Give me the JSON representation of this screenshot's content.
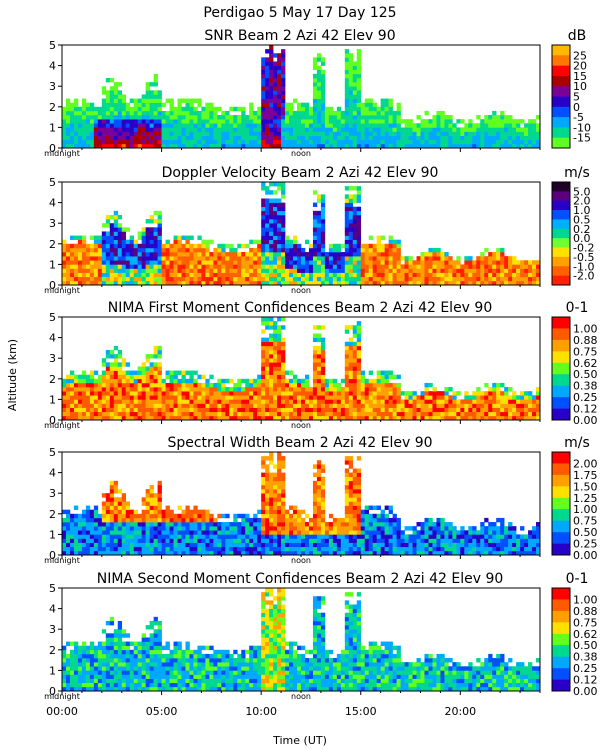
{
  "figure": {
    "title": "Perdigao    5 May 17 Day 125",
    "ylabel": "Altitude (km)",
    "xlabel": "Time (UT)",
    "x_ticks": [
      "00:00",
      "05:00",
      "10:00",
      "15:00",
      "20:00"
    ],
    "y_ticks": [
      "0",
      "1",
      "2",
      "3",
      "4",
      "5"
    ],
    "midnight_label": "midnight",
    "noon_label": "noon"
  },
  "chart_data": [
    {
      "type": "heatmap",
      "title": "SNR Beam 2 Azi  42 Elev 90",
      "colorbar_unit": "dB",
      "colorbar_labels": [
        "25",
        "20",
        "15",
        "10",
        "5",
        "0",
        "-5",
        "-10",
        "-15"
      ],
      "colorbar_colors": [
        "#ffb900",
        "#ff7700",
        "#ff0000",
        "#aa0000",
        "#7a0096",
        "#2800c8",
        "#0050ff",
        "#00a8ff",
        "#00d890",
        "#60ff20"
      ],
      "colorbar_values": [
        -15,
        -10,
        -5,
        0,
        5,
        10,
        15,
        20,
        25
      ],
      "xlim_hours": [
        0,
        24
      ],
      "ylim_km": [
        0,
        5
      ],
      "features": "Weak returns (about -15 to -10 dB) fill 0-2.5 km through the day; strong boundary-layer returns (5-20 dB) below 1.5 km from about 01:30 to 05:00 and from 10:00 to 11:00 km deep; vertical plumes to 5 km near 10:30, 13:00 and 14:30."
    },
    {
      "type": "heatmap",
      "title": "Doppler Velocity Beam 2 Azi  42 Elev 90",
      "colorbar_unit": "m/s",
      "colorbar_labels": [
        "5.0",
        "2.0",
        "1.0",
        "0.5",
        "0.2",
        "0.0",
        "-0.2",
        "-0.5",
        "-1.0",
        "-2.0"
      ],
      "colorbar_colors": [
        "#20002a",
        "#5a0080",
        "#2800c8",
        "#0050ff",
        "#00b0ff",
        "#00d890",
        "#70ff30",
        "#ffe000",
        "#ffa000",
        "#ff6000",
        "#ff2000"
      ],
      "colorbar_values": [
        -2.0,
        -1.0,
        -0.5,
        -0.2,
        0.0,
        0.2,
        0.5,
        1.0,
        2.0,
        5.0
      ],
      "xlim_hours": [
        0,
        24
      ],
      "ylim_km": [
        0,
        5
      ],
      "features": "Mostly downward velocity (-0.5 to -2 m/s) below 2.5 km; upward velocities (1 to 5 m/s) in columns from about 02:00 to 05:00 and 10:00 to 15:00 reaching 5 km."
    },
    {
      "type": "heatmap",
      "title": "NIMA First Moment Confidences Beam 2 Azi  42 Elev 90",
      "colorbar_unit": "0-1",
      "colorbar_labels": [
        "1.00",
        "0.88",
        "0.75",
        "0.62",
        "0.50",
        "0.38",
        "0.25",
        "0.12",
        "0.00"
      ],
      "colorbar_colors": [
        "#ff0000",
        "#ff5a00",
        "#ffa000",
        "#ffe000",
        "#60ff20",
        "#00d890",
        "#00a8ff",
        "#0050ff",
        "#2800c8"
      ],
      "colorbar_values": [
        0.0,
        0.12,
        0.25,
        0.38,
        0.5,
        0.62,
        0.75,
        0.88,
        1.0
      ],
      "xlim_hours": [
        0,
        24
      ],
      "ylim_km": [
        0,
        5
      ],
      "features": "High confidence (0.75-1.00) below 2 km through most of the day with columns to 5 km near 10:00-15:00; lower confidence (0.38-0.62) at upper edges."
    },
    {
      "type": "heatmap",
      "title": "Spectral Width Beam 2 Azi  42 Elev 90",
      "colorbar_unit": "m/s",
      "colorbar_labels": [
        "2.00",
        "1.75",
        "1.50",
        "1.25",
        "1.00",
        "0.75",
        "0.50",
        "0.25",
        "0.00"
      ],
      "colorbar_colors": [
        "#ff0000",
        "#ff5a00",
        "#ffa000",
        "#ffe000",
        "#60ff20",
        "#00d890",
        "#00a8ff",
        "#0050ff",
        "#2800c8"
      ],
      "colorbar_values": [
        0.0,
        0.25,
        0.5,
        0.75,
        1.0,
        1.25,
        1.5,
        1.75,
        2.0
      ],
      "xlim_hours": [
        0,
        24
      ],
      "ylim_km": [
        0,
        5
      ],
      "features": "Large widths (1.5-2.0 m/s) above 2 km from about 02:00 to 08:00 and in plumes near 10:00-15:00; smaller widths (0.5-1.0 m/s) in the afternoon boundary layer."
    },
    {
      "type": "heatmap",
      "title": "NIMA Second Moment Confidences Beam 2 Azi  42 Elev 90",
      "colorbar_unit": "0-1",
      "colorbar_labels": [
        "1.00",
        "0.88",
        "0.75",
        "0.62",
        "0.50",
        "0.38",
        "0.25",
        "0.12",
        "0.00"
      ],
      "colorbar_colors": [
        "#ff0000",
        "#ff5a00",
        "#ffa000",
        "#ffe000",
        "#60ff20",
        "#00d890",
        "#00a8ff",
        "#0050ff",
        "#2800c8"
      ],
      "colorbar_values": [
        0.0,
        0.12,
        0.25,
        0.38,
        0.5,
        0.62,
        0.75,
        0.88,
        1.0
      ],
      "xlim_hours": [
        0,
        24
      ],
      "ylim_km": [
        0,
        5
      ],
      "features": "Moderate confidence (0.25-0.62) across the 0-2.5 km layer; higher confidence (0.62-0.88) in the column near 10:30 up to 5 km."
    }
  ]
}
